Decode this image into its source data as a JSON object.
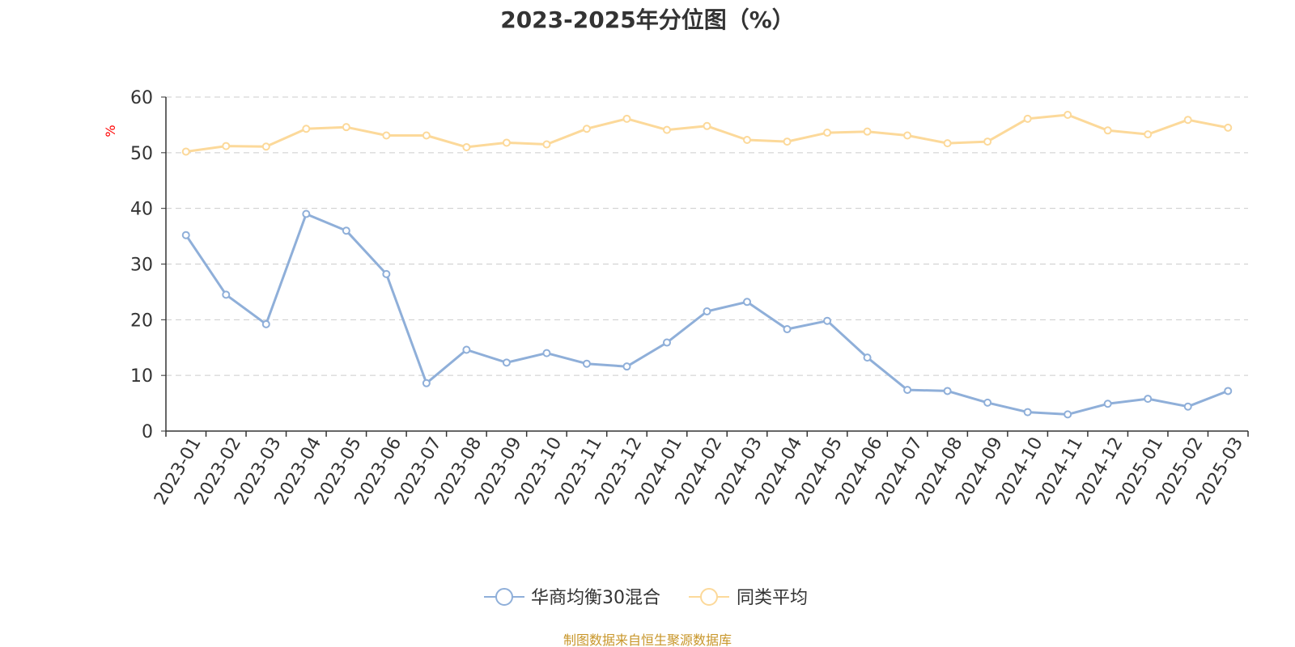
{
  "colors": {
    "series_fund": "#8FAFD9",
    "series_avg": "#FCD99A",
    "axis": "#333333",
    "grid": "#cccccc",
    "unit": "#ff0000",
    "source": "#c8962a"
  },
  "footer": {
    "source": "制图数据来自恒生聚源数据库"
  },
  "chart_data": {
    "type": "line",
    "title": "2023-2025年分位图（%）",
    "ylabel": "%",
    "xlabel": "",
    "ylim": [
      0,
      60
    ],
    "yticks": [
      0,
      10,
      20,
      30,
      40,
      50,
      60
    ],
    "grid": true,
    "legend_position": "bottom-center",
    "categories": [
      "2023-01",
      "2023-02",
      "2023-03",
      "2023-04",
      "2023-05",
      "2023-06",
      "2023-07",
      "2023-08",
      "2023-09",
      "2023-10",
      "2023-11",
      "2023-12",
      "2024-01",
      "2024-02",
      "2024-03",
      "2024-04",
      "2024-05",
      "2024-06",
      "2024-07",
      "2024-08",
      "2024-09",
      "2024-10",
      "2024-11",
      "2024-12",
      "2025-01",
      "2025-02",
      "2025-03"
    ],
    "series": [
      {
        "name": "华商均衡30混合",
        "color": "#8FAFD9",
        "values": [
          35.2,
          24.5,
          19.2,
          39.0,
          36.0,
          28.2,
          8.6,
          14.6,
          12.3,
          14.0,
          12.1,
          11.6,
          15.9,
          21.5,
          23.2,
          18.3,
          19.8,
          13.2,
          7.4,
          7.2,
          5.1,
          3.4,
          3.0,
          4.9,
          5.8,
          4.4,
          7.2
        ]
      },
      {
        "name": "同类平均",
        "color": "#FCD99A",
        "values": [
          50.2,
          51.2,
          51.1,
          54.3,
          54.6,
          53.1,
          53.1,
          51.0,
          51.8,
          51.5,
          54.3,
          56.1,
          54.1,
          54.8,
          52.3,
          52.0,
          53.6,
          53.8,
          53.1,
          51.7,
          52.0,
          56.1,
          56.8,
          54.0,
          53.3,
          55.9,
          54.5
        ]
      }
    ]
  }
}
